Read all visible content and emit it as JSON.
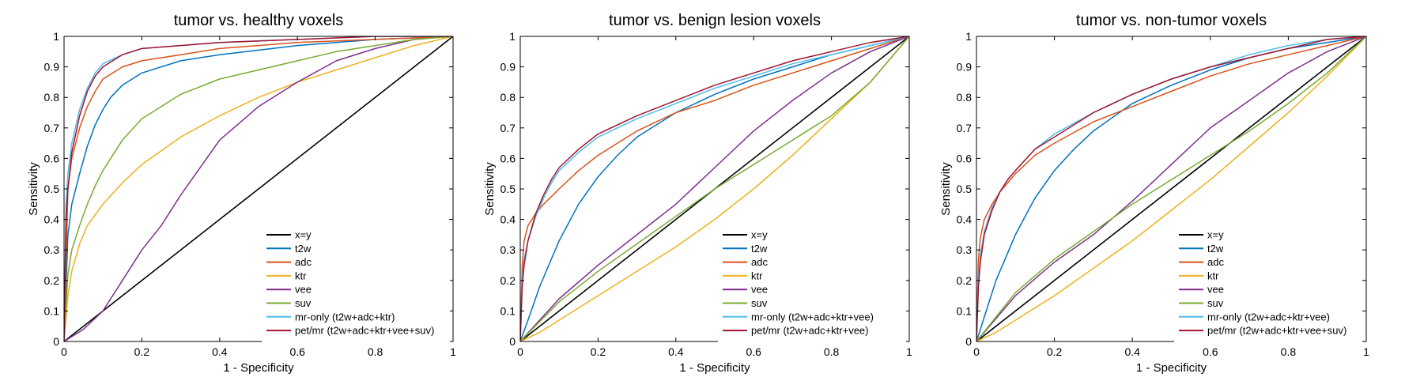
{
  "colors": {
    "xy": "#000000",
    "t2w": "#0072BD",
    "adc": "#D95319",
    "ktr": "#EDB120",
    "vee": "#7E2F8E",
    "suv": "#77AC30",
    "mr_only": "#4DBEEE",
    "pet_mr": "#A2142F"
  },
  "chart_data": [
    {
      "type": "line",
      "title": "tumor vs. healthy voxels",
      "xlabel": "1 - Specificity",
      "ylabel": "Sensitivity",
      "xlim": [
        0,
        1
      ],
      "ylim": [
        0,
        1
      ],
      "xticks": [
        "0",
        "0.2",
        "0.4",
        "0.6",
        "0.8",
        "1"
      ],
      "yticks": [
        "0",
        "0.1",
        "0.2",
        "0.3",
        "0.4",
        "0.5",
        "0.6",
        "0.7",
        "0.8",
        "0.9",
        "1"
      ],
      "legend_position": "bottom-right",
      "series": [
        {
          "name": "x=y",
          "color_key": "xy",
          "x": [
            0,
            1
          ],
          "y": [
            0,
            1
          ]
        },
        {
          "name": "t2w",
          "color_key": "t2w",
          "x": [
            0,
            0.01,
            0.02,
            0.04,
            0.06,
            0.08,
            0.1,
            0.12,
            0.15,
            0.2,
            0.3,
            0.4,
            0.6,
            0.8,
            1
          ],
          "y": [
            0,
            0.35,
            0.45,
            0.55,
            0.64,
            0.71,
            0.76,
            0.8,
            0.84,
            0.88,
            0.92,
            0.94,
            0.97,
            0.99,
            1
          ]
        },
        {
          "name": "adc",
          "color_key": "adc",
          "x": [
            0,
            0.01,
            0.02,
            0.04,
            0.06,
            0.08,
            0.1,
            0.15,
            0.2,
            0.3,
            0.4,
            0.6,
            0.8,
            1
          ],
          "y": [
            0,
            0.5,
            0.6,
            0.7,
            0.77,
            0.82,
            0.86,
            0.9,
            0.92,
            0.94,
            0.96,
            0.98,
            0.99,
            1
          ]
        },
        {
          "name": "ktr",
          "color_key": "ktr",
          "x": [
            0,
            0.01,
            0.02,
            0.04,
            0.06,
            0.1,
            0.15,
            0.2,
            0.3,
            0.4,
            0.5,
            0.6,
            0.7,
            0.8,
            0.9,
            1
          ],
          "y": [
            0,
            0.15,
            0.23,
            0.32,
            0.38,
            0.45,
            0.52,
            0.58,
            0.67,
            0.74,
            0.8,
            0.85,
            0.89,
            0.93,
            0.97,
            1
          ]
        },
        {
          "name": "vee",
          "color_key": "vee",
          "x": [
            0,
            0.05,
            0.1,
            0.15,
            0.2,
            0.25,
            0.3,
            0.4,
            0.5,
            0.6,
            0.7,
            0.8,
            0.9,
            1
          ],
          "y": [
            0,
            0.04,
            0.1,
            0.2,
            0.3,
            0.38,
            0.48,
            0.66,
            0.77,
            0.85,
            0.92,
            0.96,
            0.99,
            1
          ]
        },
        {
          "name": "suv",
          "color_key": "suv",
          "x": [
            0,
            0.01,
            0.02,
            0.04,
            0.06,
            0.08,
            0.1,
            0.15,
            0.2,
            0.3,
            0.4,
            0.5,
            0.6,
            0.7,
            0.8,
            0.9,
            1
          ],
          "y": [
            0,
            0.22,
            0.3,
            0.38,
            0.45,
            0.51,
            0.56,
            0.66,
            0.73,
            0.81,
            0.86,
            0.89,
            0.92,
            0.95,
            0.97,
            0.99,
            1
          ]
        },
        {
          "name": "mr-only (t2w+adc+ktr)",
          "color_key": "mr_only",
          "x": [
            0,
            0.005,
            0.01,
            0.02,
            0.04,
            0.06,
            0.08,
            0.1,
            0.15,
            0.2,
            0.3,
            0.4,
            0.6,
            0.8,
            1
          ],
          "y": [
            0,
            0.45,
            0.55,
            0.65,
            0.76,
            0.83,
            0.88,
            0.91,
            0.94,
            0.96,
            0.97,
            0.98,
            0.99,
            1,
            1
          ]
        },
        {
          "name": "pet/mr (t2w+adc+ktr+vee+suv)",
          "color_key": "pet_mr",
          "x": [
            0,
            0.005,
            0.01,
            0.02,
            0.04,
            0.06,
            0.08,
            0.1,
            0.15,
            0.2,
            0.3,
            0.4,
            0.6,
            0.8,
            1
          ],
          "y": [
            0,
            0.4,
            0.5,
            0.62,
            0.74,
            0.82,
            0.87,
            0.9,
            0.94,
            0.96,
            0.97,
            0.98,
            0.99,
            1,
            1
          ]
        }
      ]
    },
    {
      "type": "line",
      "title": "tumor vs. benign lesion voxels",
      "xlabel": "1 - Specificity",
      "ylabel": "Sensitivity",
      "xlim": [
        0,
        1
      ],
      "ylim": [
        0,
        1
      ],
      "xticks": [
        "0",
        "0.2",
        "0.4",
        "0.6",
        "0.8",
        "1"
      ],
      "yticks": [
        "0",
        "0.1",
        "0.2",
        "0.3",
        "0.4",
        "0.5",
        "0.6",
        "0.7",
        "0.8",
        "0.9",
        "1"
      ],
      "legend_position": "bottom-right",
      "series": [
        {
          "name": "x=y",
          "color_key": "xy",
          "x": [
            0,
            1
          ],
          "y": [
            0,
            1
          ]
        },
        {
          "name": "t2w",
          "color_key": "t2w",
          "x": [
            0,
            0.02,
            0.05,
            0.1,
            0.15,
            0.2,
            0.25,
            0.3,
            0.4,
            0.5,
            0.6,
            0.7,
            0.8,
            0.9,
            1
          ],
          "y": [
            0,
            0.07,
            0.18,
            0.33,
            0.45,
            0.54,
            0.61,
            0.67,
            0.75,
            0.81,
            0.86,
            0.9,
            0.94,
            0.97,
            1
          ]
        },
        {
          "name": "adc",
          "color_key": "adc",
          "x": [
            0,
            0.005,
            0.01,
            0.02,
            0.04,
            0.06,
            0.1,
            0.15,
            0.2,
            0.3,
            0.4,
            0.5,
            0.6,
            0.7,
            0.8,
            0.9,
            1
          ],
          "y": [
            0,
            0.25,
            0.33,
            0.38,
            0.42,
            0.45,
            0.5,
            0.56,
            0.61,
            0.69,
            0.75,
            0.79,
            0.84,
            0.88,
            0.92,
            0.96,
            1
          ]
        },
        {
          "name": "ktr",
          "color_key": "ktr",
          "x": [
            0,
            0.05,
            0.1,
            0.2,
            0.3,
            0.4,
            0.5,
            0.6,
            0.7,
            0.8,
            0.9,
            1
          ],
          "y": [
            0,
            0.03,
            0.07,
            0.15,
            0.23,
            0.31,
            0.4,
            0.5,
            0.61,
            0.73,
            0.85,
            1
          ]
        },
        {
          "name": "vee",
          "color_key": "vee",
          "x": [
            0,
            0.1,
            0.2,
            0.3,
            0.4,
            0.5,
            0.6,
            0.7,
            0.8,
            0.9,
            1
          ],
          "y": [
            0,
            0.14,
            0.25,
            0.35,
            0.45,
            0.57,
            0.69,
            0.79,
            0.88,
            0.95,
            1
          ]
        },
        {
          "name": "suv",
          "color_key": "suv",
          "x": [
            0,
            0.1,
            0.2,
            0.3,
            0.4,
            0.5,
            0.6,
            0.7,
            0.8,
            0.9,
            1
          ],
          "y": [
            0,
            0.13,
            0.23,
            0.32,
            0.41,
            0.5,
            0.58,
            0.66,
            0.74,
            0.85,
            1
          ]
        },
        {
          "name": "mr-only (t2w+adc+ktr+vee)",
          "color_key": "mr_only",
          "x": [
            0,
            0.005,
            0.01,
            0.02,
            0.04,
            0.06,
            0.08,
            0.1,
            0.15,
            0.2,
            0.3,
            0.4,
            0.5,
            0.6,
            0.7,
            0.8,
            0.9,
            1
          ],
          "y": [
            0,
            0.2,
            0.27,
            0.33,
            0.41,
            0.47,
            0.52,
            0.56,
            0.62,
            0.67,
            0.73,
            0.78,
            0.83,
            0.87,
            0.91,
            0.94,
            0.97,
            1
          ]
        },
        {
          "name": "pet/mr (t2w+adc+ktr+vee)",
          "color_key": "pet_mr",
          "x": [
            0,
            0.005,
            0.01,
            0.02,
            0.04,
            0.06,
            0.08,
            0.1,
            0.15,
            0.2,
            0.3,
            0.4,
            0.5,
            0.6,
            0.7,
            0.8,
            0.9,
            1
          ],
          "y": [
            0,
            0.18,
            0.25,
            0.33,
            0.42,
            0.48,
            0.53,
            0.57,
            0.63,
            0.68,
            0.74,
            0.79,
            0.84,
            0.88,
            0.92,
            0.95,
            0.98,
            1
          ]
        }
      ]
    },
    {
      "type": "line",
      "title": "tumor vs. non-tumor voxels",
      "xlabel": "1 - Specificity",
      "ylabel": "Sensitivity",
      "xlim": [
        0,
        1
      ],
      "ylim": [
        0,
        1
      ],
      "xticks": [
        "0",
        "0.2",
        "0.4",
        "0.6",
        "0.8",
        "1"
      ],
      "yticks": [
        "0",
        "0.1",
        "0.2",
        "0.3",
        "0.4",
        "0.5",
        "0.6",
        "0.7",
        "0.8",
        "0.9",
        "1"
      ],
      "legend_position": "bottom-right",
      "series": [
        {
          "name": "x=y",
          "color_key": "xy",
          "x": [
            0,
            1
          ],
          "y": [
            0,
            1
          ]
        },
        {
          "name": "t2w",
          "color_key": "t2w",
          "x": [
            0,
            0.02,
            0.05,
            0.1,
            0.15,
            0.2,
            0.25,
            0.3,
            0.4,
            0.5,
            0.6,
            0.7,
            0.8,
            0.9,
            1
          ],
          "y": [
            0,
            0.08,
            0.2,
            0.35,
            0.47,
            0.56,
            0.63,
            0.69,
            0.78,
            0.84,
            0.89,
            0.93,
            0.96,
            0.98,
            1
          ]
        },
        {
          "name": "adc",
          "color_key": "adc",
          "x": [
            0,
            0.005,
            0.01,
            0.02,
            0.04,
            0.06,
            0.1,
            0.15,
            0.2,
            0.3,
            0.4,
            0.5,
            0.6,
            0.7,
            0.8,
            0.9,
            1
          ],
          "y": [
            0,
            0.27,
            0.34,
            0.4,
            0.45,
            0.49,
            0.55,
            0.61,
            0.65,
            0.72,
            0.77,
            0.82,
            0.87,
            0.91,
            0.94,
            0.97,
            1
          ]
        },
        {
          "name": "ktr",
          "color_key": "ktr",
          "x": [
            0,
            0.05,
            0.1,
            0.2,
            0.3,
            0.4,
            0.5,
            0.6,
            0.7,
            0.8,
            0.9,
            1
          ],
          "y": [
            0,
            0.03,
            0.07,
            0.15,
            0.24,
            0.33,
            0.43,
            0.53,
            0.64,
            0.75,
            0.87,
            1
          ]
        },
        {
          "name": "vee",
          "color_key": "vee",
          "x": [
            0,
            0.1,
            0.2,
            0.3,
            0.4,
            0.5,
            0.6,
            0.7,
            0.8,
            0.9,
            1
          ],
          "y": [
            0,
            0.15,
            0.26,
            0.35,
            0.46,
            0.58,
            0.7,
            0.79,
            0.88,
            0.95,
            1
          ]
        },
        {
          "name": "suv",
          "color_key": "suv",
          "x": [
            0,
            0.1,
            0.2,
            0.3,
            0.4,
            0.5,
            0.6,
            0.7,
            0.8,
            0.9,
            1
          ],
          "y": [
            0,
            0.16,
            0.27,
            0.36,
            0.45,
            0.53,
            0.61,
            0.69,
            0.78,
            0.88,
            1
          ]
        },
        {
          "name": "mr-only (t2w+adc+ktr+vee)",
          "color_key": "mr_only",
          "x": [
            0,
            0.005,
            0.01,
            0.02,
            0.04,
            0.06,
            0.08,
            0.1,
            0.15,
            0.2,
            0.3,
            0.4,
            0.5,
            0.6,
            0.7,
            0.8,
            0.9,
            1
          ],
          "y": [
            0,
            0.2,
            0.28,
            0.36,
            0.44,
            0.49,
            0.53,
            0.56,
            0.63,
            0.68,
            0.75,
            0.81,
            0.86,
            0.9,
            0.94,
            0.97,
            0.99,
            1
          ]
        },
        {
          "name": "pet/mr (t2w+adc+ktr+vee+suv)",
          "color_key": "pet_mr",
          "x": [
            0,
            0.005,
            0.01,
            0.02,
            0.04,
            0.06,
            0.08,
            0.1,
            0.15,
            0.2,
            0.3,
            0.4,
            0.5,
            0.6,
            0.7,
            0.8,
            0.9,
            1
          ],
          "y": [
            0,
            0.18,
            0.26,
            0.35,
            0.43,
            0.49,
            0.53,
            0.56,
            0.63,
            0.67,
            0.75,
            0.81,
            0.86,
            0.9,
            0.93,
            0.96,
            0.99,
            1
          ]
        }
      ]
    }
  ]
}
